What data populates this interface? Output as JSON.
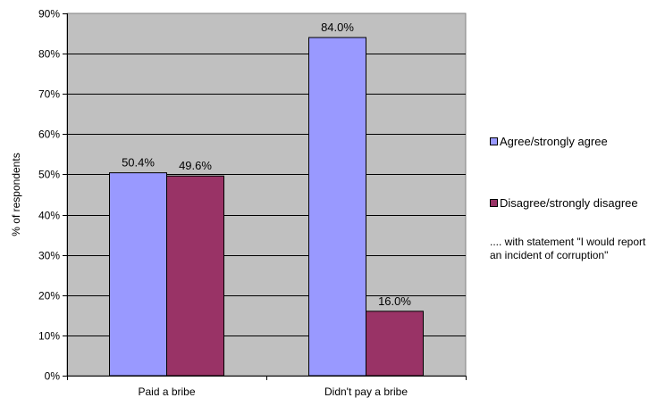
{
  "chart_data": {
    "type": "bar",
    "categories": [
      "Paid a bribe",
      "Didn't pay a bribe"
    ],
    "series": [
      {
        "name": "Agree/strongly agree",
        "values": [
          50.4,
          84.0
        ],
        "labels": [
          "50.4%",
          "84.0%"
        ],
        "color": "#9999ff"
      },
      {
        "name": "Disagree/strongly disagree",
        "values": [
          49.6,
          16.0
        ],
        "labels": [
          "49.6%",
          "16.0%"
        ],
        "color": "#993366"
      }
    ],
    "title": "",
    "xlabel": "",
    "ylabel": "% of respondents",
    "ylim": [
      0,
      90
    ],
    "yticks": [
      0,
      10,
      20,
      30,
      40,
      50,
      60,
      70,
      80,
      90
    ],
    "ytick_labels": [
      "0%",
      "10%",
      "20%",
      "30%",
      "40%",
      "50%",
      "60%",
      "70%",
      "80%",
      "90%"
    ],
    "grid": true,
    "plot_background": "#c0c0c0",
    "legend_position": "right",
    "annotation": ".... with statement \"I would report an incident of corruption\""
  }
}
